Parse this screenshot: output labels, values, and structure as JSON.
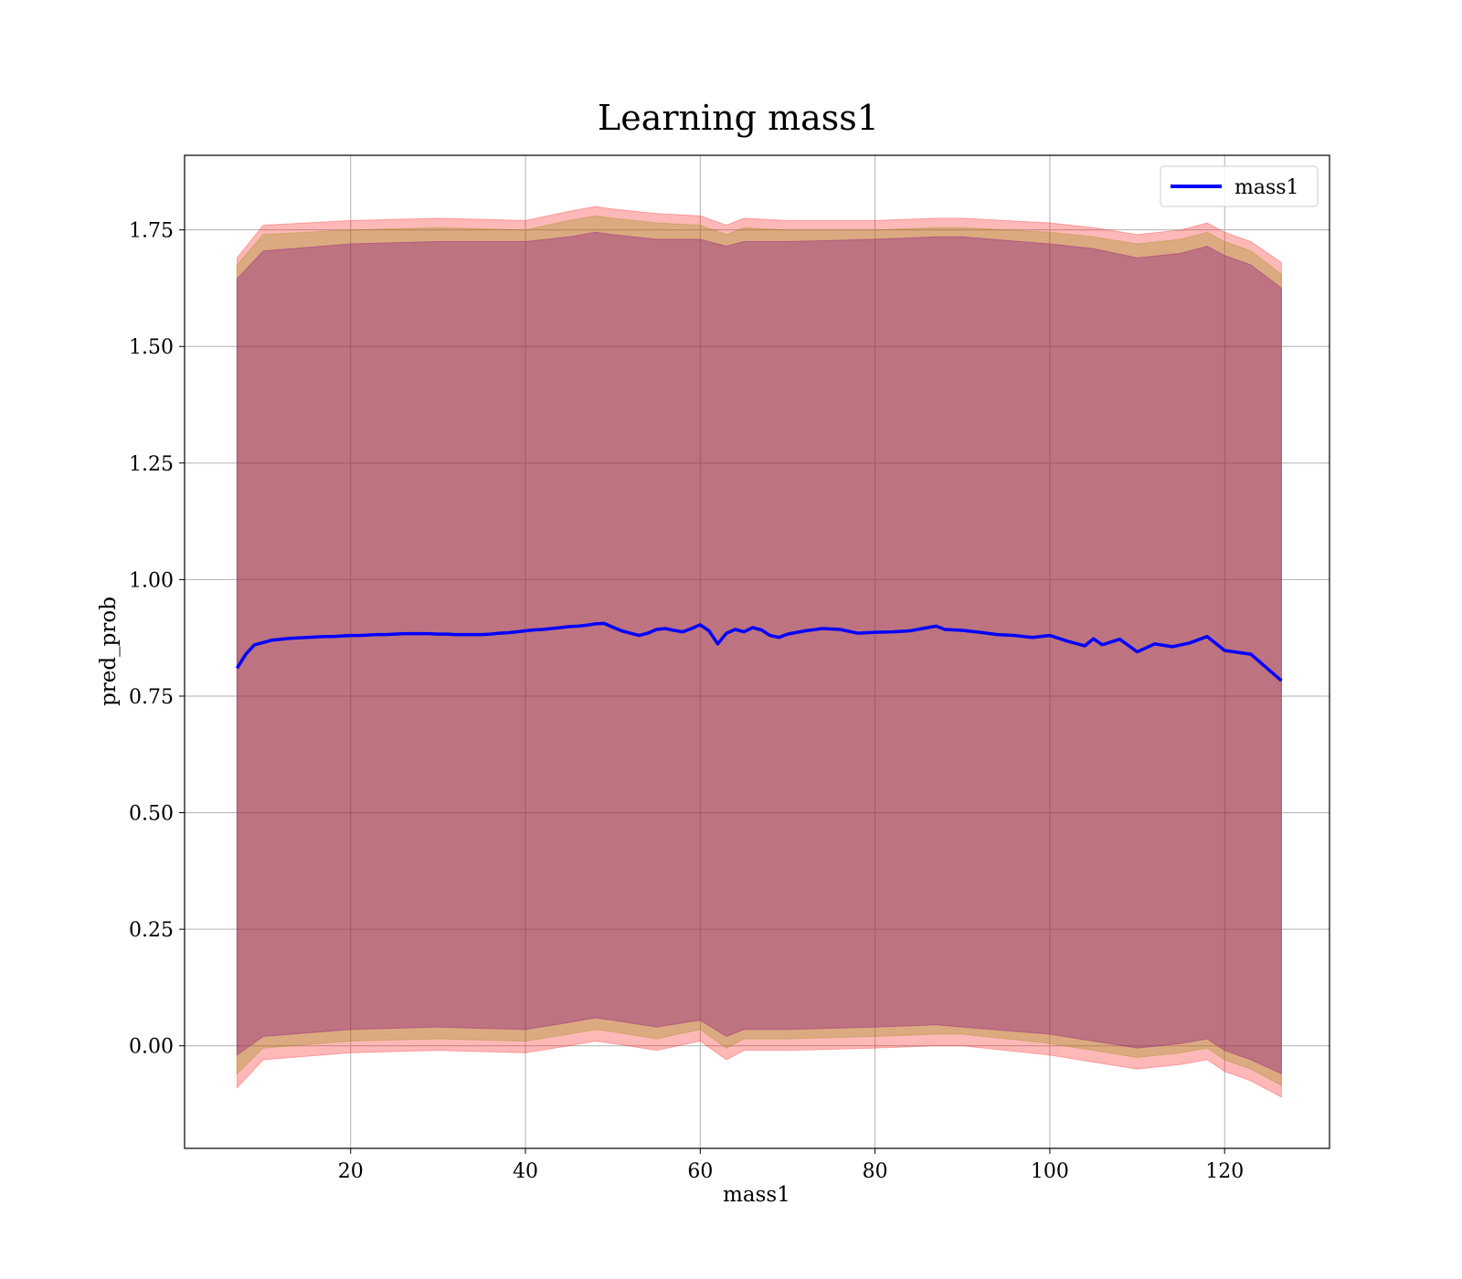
{
  "chart_data": {
    "type": "line",
    "title": "Learning mass1",
    "xlabel": "mass1",
    "ylabel": "pred_prob",
    "xlim": [
      1,
      132
    ],
    "ylim": [
      -0.22,
      1.91
    ],
    "x_ticks": [
      20,
      40,
      60,
      80,
      100,
      120
    ],
    "x_tick_labels": [
      "20",
      "40",
      "60",
      "80",
      "100",
      "120"
    ],
    "y_ticks": [
      0.0,
      0.25,
      0.5,
      0.75,
      1.0,
      1.25,
      1.5,
      1.75
    ],
    "y_tick_labels": [
      "0.00",
      "0.25",
      "0.50",
      "0.75",
      "1.00",
      "1.25",
      "1.50",
      "1.75"
    ],
    "grid": true,
    "legend_position": "top-right",
    "series": [
      {
        "name": "mass1",
        "color": "#0000ff",
        "x": [
          7,
          8,
          9,
          10,
          11,
          12,
          13,
          14,
          15,
          16,
          17,
          18,
          19,
          20,
          21,
          22,
          23,
          24,
          25,
          26,
          27,
          28,
          29,
          30,
          31,
          32,
          33,
          34,
          35,
          36,
          37,
          38,
          39,
          40,
          41,
          42,
          43,
          44,
          45,
          46,
          47,
          48,
          49,
          50,
          51,
          52,
          53,
          54,
          55,
          56,
          57,
          58,
          59,
          60,
          61,
          62,
          63,
          64,
          65,
          66,
          67,
          68,
          69,
          70,
          72,
          74,
          76,
          78,
          80,
          82,
          84,
          86,
          87,
          88,
          90,
          92,
          94,
          96,
          98,
          100,
          102,
          104,
          105,
          106,
          108,
          110,
          112,
          114,
          116,
          118,
          120,
          123,
          126.5
        ],
        "y": [
          0.81,
          0.84,
          0.86,
          0.865,
          0.87,
          0.872,
          0.874,
          0.875,
          0.876,
          0.877,
          0.878,
          0.878,
          0.879,
          0.88,
          0.88,
          0.881,
          0.882,
          0.882,
          0.883,
          0.884,
          0.884,
          0.884,
          0.884,
          0.883,
          0.883,
          0.882,
          0.882,
          0.882,
          0.882,
          0.883,
          0.885,
          0.886,
          0.888,
          0.89,
          0.892,
          0.893,
          0.895,
          0.897,
          0.899,
          0.9,
          0.902,
          0.905,
          0.906,
          0.898,
          0.89,
          0.885,
          0.88,
          0.885,
          0.893,
          0.895,
          0.891,
          0.888,
          0.895,
          0.903,
          0.89,
          0.862,
          0.885,
          0.893,
          0.888,
          0.897,
          0.892,
          0.88,
          0.876,
          0.883,
          0.89,
          0.895,
          0.893,
          0.885,
          0.887,
          0.888,
          0.89,
          0.897,
          0.9,
          0.893,
          0.891,
          0.887,
          0.882,
          0.88,
          0.876,
          0.88,
          0.868,
          0.858,
          0.873,
          0.86,
          0.872,
          0.845,
          0.862,
          0.856,
          0.864,
          0.878,
          0.848,
          0.84,
          0.783
        ]
      }
    ],
    "bands": [
      {
        "color": "#ff0000",
        "alpha": 0.28,
        "x": [
          7,
          10,
          20,
          30,
          40,
          45,
          48,
          50,
          55,
          60,
          63,
          65,
          70,
          80,
          87,
          90,
          100,
          105,
          110,
          115,
          118,
          120,
          123,
          126.5
        ],
        "upper": [
          1.69,
          1.76,
          1.77,
          1.775,
          1.77,
          1.79,
          1.8,
          1.795,
          1.785,
          1.78,
          1.76,
          1.775,
          1.77,
          1.77,
          1.775,
          1.775,
          1.765,
          1.755,
          1.74,
          1.75,
          1.765,
          1.745,
          1.725,
          1.68
        ],
        "lower": [
          -0.09,
          -0.03,
          -0.015,
          -0.01,
          -0.015,
          0.0,
          0.01,
          0.005,
          -0.01,
          0.01,
          -0.03,
          -0.01,
          -0.01,
          -0.005,
          0.0,
          0.0,
          -0.02,
          -0.035,
          -0.05,
          -0.04,
          -0.03,
          -0.055,
          -0.075,
          -0.11
        ]
      },
      {
        "color": "#8b8b00",
        "alpha": 0.3,
        "x": [
          7,
          10,
          20,
          30,
          40,
          45,
          48,
          50,
          55,
          60,
          63,
          65,
          70,
          80,
          87,
          90,
          100,
          105,
          110,
          115,
          118,
          120,
          123,
          126.5
        ],
        "upper": [
          1.675,
          1.74,
          1.75,
          1.755,
          1.75,
          1.77,
          1.78,
          1.775,
          1.765,
          1.76,
          1.74,
          1.755,
          1.75,
          1.75,
          1.755,
          1.755,
          1.745,
          1.735,
          1.72,
          1.73,
          1.745,
          1.725,
          1.705,
          1.655
        ],
        "lower": [
          -0.06,
          -0.005,
          0.01,
          0.015,
          0.01,
          0.025,
          0.035,
          0.03,
          0.015,
          0.035,
          -0.005,
          0.015,
          0.015,
          0.02,
          0.025,
          0.025,
          0.005,
          -0.01,
          -0.025,
          -0.015,
          -0.005,
          -0.03,
          -0.05,
          -0.085
        ]
      },
      {
        "color": "#800080",
        "alpha": 0.32,
        "x": [
          7,
          10,
          20,
          30,
          40,
          45,
          48,
          50,
          55,
          60,
          63,
          65,
          70,
          80,
          87,
          90,
          100,
          105,
          110,
          115,
          118,
          120,
          123,
          126.5
        ],
        "upper": [
          1.645,
          1.705,
          1.72,
          1.725,
          1.725,
          1.735,
          1.745,
          1.74,
          1.73,
          1.73,
          1.715,
          1.725,
          1.725,
          1.73,
          1.735,
          1.735,
          1.72,
          1.71,
          1.69,
          1.7,
          1.715,
          1.695,
          1.675,
          1.625
        ],
        "lower": [
          -0.02,
          0.02,
          0.035,
          0.04,
          0.035,
          0.05,
          0.06,
          0.055,
          0.04,
          0.055,
          0.02,
          0.035,
          0.035,
          0.04,
          0.045,
          0.04,
          0.025,
          0.01,
          -0.005,
          0.005,
          0.015,
          -0.01,
          -0.03,
          -0.06
        ]
      }
    ]
  }
}
